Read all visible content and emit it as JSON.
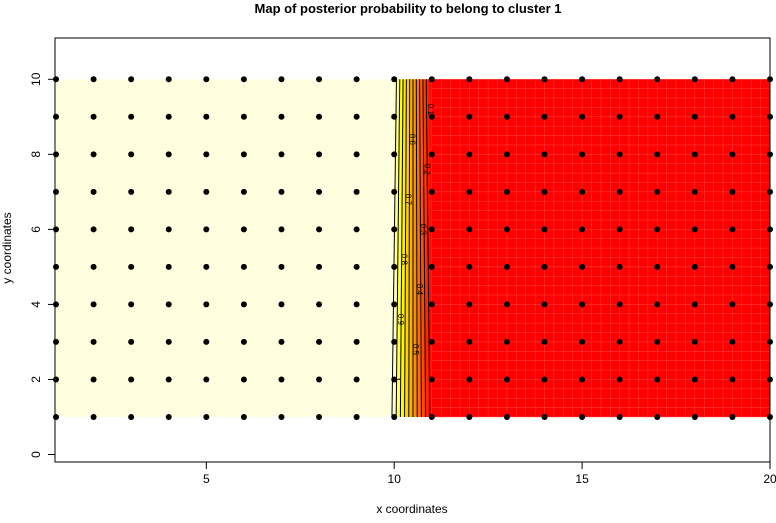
{
  "chart_data": {
    "type": "heatmap",
    "title": "Map of posterior probability to belong to cluster  1",
    "xlabel": "x coordinates",
    "ylabel": "y coordinates",
    "xlim": [
      1,
      20
    ],
    "ylim": [
      -0.2,
      11.1
    ],
    "x_ticks": [
      5,
      10,
      15,
      20
    ],
    "y_ticks": [
      0,
      2,
      4,
      6,
      8,
      10
    ],
    "grid": false,
    "points": {
      "x_values": [
        1,
        2,
        3,
        4,
        5,
        6,
        7,
        8,
        9,
        10,
        11,
        12,
        13,
        14,
        15,
        16,
        17,
        18,
        19,
        20
      ],
      "y_values": [
        1,
        2,
        3,
        4,
        5,
        6,
        7,
        8,
        9,
        10
      ]
    },
    "probability_field": {
      "description_x": [
        1,
        10,
        11,
        20
      ],
      "probability": [
        1,
        1,
        0,
        0
      ]
    },
    "contour_levels": [
      1,
      0.9,
      0.8,
      0.7,
      0.6,
      0.5,
      0.4,
      0.3,
      0.2,
      0.1
    ],
    "contour_labels": [
      "1",
      "0.9",
      "0.8",
      "0.7",
      "0.6",
      "0.5",
      "0.4",
      "0.3",
      "0.2",
      "0.1"
    ],
    "colors": {
      "low": "#FF0000",
      "mid": "#FFFF00",
      "high": "#FFFFE0",
      "points": "#000000"
    }
  }
}
